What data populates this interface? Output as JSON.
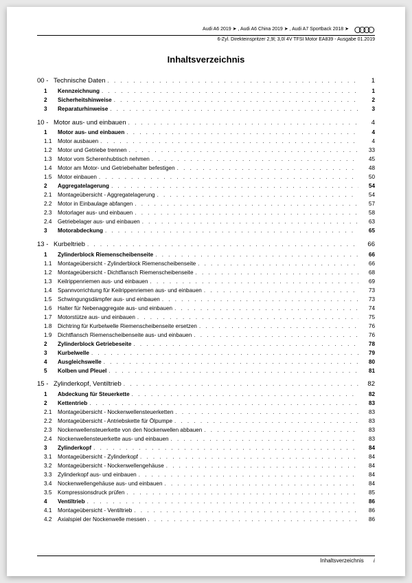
{
  "header": {
    "line1": "Audi A6 2019 ➤ , Audi A6 China 2019 ➤ , Audi A7 Sportback 2018 ➤",
    "line2": "6-Zyl. Direkteinspritzer 2,9l; 3,0l 4V TFSI Motor EA839 - Ausgabe 01.2019"
  },
  "title": "Inhaltsverzeichnis",
  "footer": {
    "label": "Inhaltsverzeichnis",
    "page": "i"
  },
  "sections": [
    {
      "chapter_num": "00 -",
      "chapter_label": "Technische Daten",
      "chapter_page": "1",
      "items": [
        {
          "lvl": 1,
          "num": "1",
          "label": "Kennzeichnung",
          "page": "1",
          "bold": true
        },
        {
          "lvl": 1,
          "num": "2",
          "label": "Sicherheitshinweise",
          "page": "2",
          "bold": true
        },
        {
          "lvl": 1,
          "num": "3",
          "label": "Reparaturhinweise",
          "page": "3",
          "bold": true
        }
      ]
    },
    {
      "chapter_num": "10 -",
      "chapter_label": "Motor aus- und einbauen",
      "chapter_page": "4",
      "items": [
        {
          "lvl": 1,
          "num": "1",
          "label": "Motor aus- und einbauen",
          "page": "4",
          "bold": true
        },
        {
          "lvl": 2,
          "num": "1.1",
          "label": "Motor ausbauen",
          "page": "4"
        },
        {
          "lvl": 2,
          "num": "1.2",
          "label": "Motor und Getriebe trennen",
          "page": "33"
        },
        {
          "lvl": 2,
          "num": "1.3",
          "label": "Motor vom Scherenhubtisch nehmen",
          "page": "45"
        },
        {
          "lvl": 2,
          "num": "1.4",
          "label": "Motor am Motor- und Getriebehalter befestigen",
          "page": "48"
        },
        {
          "lvl": 2,
          "num": "1.5",
          "label": "Motor einbauen",
          "page": "50"
        },
        {
          "lvl": 1,
          "num": "2",
          "label": "Aggregatelagerung",
          "page": "54",
          "bold": true
        },
        {
          "lvl": 2,
          "num": "2.1",
          "label": "Montageübersicht - Aggregatelagerung",
          "page": "54"
        },
        {
          "lvl": 2,
          "num": "2.2",
          "label": "Motor in Einbaulage abfangen",
          "page": "57"
        },
        {
          "lvl": 2,
          "num": "2.3",
          "label": "Motorlager aus- und einbauen",
          "page": "58"
        },
        {
          "lvl": 2,
          "num": "2.4",
          "label": "Getriebelager aus- und einbauen",
          "page": "63"
        },
        {
          "lvl": 1,
          "num": "3",
          "label": "Motorabdeckung",
          "page": "65",
          "bold": true
        }
      ]
    },
    {
      "chapter_num": "13 -",
      "chapter_label": "Kurbeltrieb",
      "chapter_page": "66",
      "items": [
        {
          "lvl": 1,
          "num": "1",
          "label": "Zylinderblock Riemenscheibenseite",
          "page": "66",
          "bold": true
        },
        {
          "lvl": 2,
          "num": "1.1",
          "label": "Montageübersicht - Zylinderblock Riemenscheibenseite",
          "page": "66"
        },
        {
          "lvl": 2,
          "num": "1.2",
          "label": "Montageübersicht - Dichtflansch Riemenscheibenseite",
          "page": "68"
        },
        {
          "lvl": 2,
          "num": "1.3",
          "label": "Keilrippenriemen aus- und einbauen",
          "page": "69"
        },
        {
          "lvl": 2,
          "num": "1.4",
          "label": "Spannvorrichtung für Keilrippenriemen aus- und einbauen",
          "page": "73"
        },
        {
          "lvl": 2,
          "num": "1.5",
          "label": "Schwingungsdämpfer aus- und einbauen",
          "page": "73"
        },
        {
          "lvl": 2,
          "num": "1.6",
          "label": "Halter für Nebenaggregate aus- und einbauen",
          "page": "74"
        },
        {
          "lvl": 2,
          "num": "1.7",
          "label": "Motorstütze aus- und einbauen",
          "page": "75"
        },
        {
          "lvl": 2,
          "num": "1.8",
          "label": "Dichtring für Kurbelwelle Riemenscheibenseite ersetzen",
          "page": "76"
        },
        {
          "lvl": 2,
          "num": "1.9",
          "label": "Dichtflansch Riemenscheibenseite aus- und einbauen",
          "page": "76"
        },
        {
          "lvl": 1,
          "num": "2",
          "label": "Zylinderblock Getriebeseite",
          "page": "78",
          "bold": true
        },
        {
          "lvl": 1,
          "num": "3",
          "label": "Kurbelwelle",
          "page": "79",
          "bold": true
        },
        {
          "lvl": 1,
          "num": "4",
          "label": "Ausgleichswelle",
          "page": "80",
          "bold": true
        },
        {
          "lvl": 1,
          "num": "5",
          "label": "Kolben und Pleuel",
          "page": "81",
          "bold": true
        }
      ]
    },
    {
      "chapter_num": "15 -",
      "chapter_label": "Zylinderkopf, Ventiltrieb",
      "chapter_page": "82",
      "items": [
        {
          "lvl": 1,
          "num": "1",
          "label": "Abdeckung für Steuerkette",
          "page": "82",
          "bold": true
        },
        {
          "lvl": 1,
          "num": "2",
          "label": "Kettentrieb",
          "page": "83",
          "bold": true
        },
        {
          "lvl": 2,
          "num": "2.1",
          "label": "Montageübersicht - Nockenwellensteuerketten",
          "page": "83"
        },
        {
          "lvl": 2,
          "num": "2.2",
          "label": "Montageübersicht - Antriebskette für Ölpumpe",
          "page": "83"
        },
        {
          "lvl": 2,
          "num": "2.3",
          "label": "Nockenwellensteuerkette von den Nockenwellen abbauen",
          "page": "83"
        },
        {
          "lvl": 2,
          "num": "2.4",
          "label": "Nockenwellensteuerkette aus- und einbauen",
          "page": "83"
        },
        {
          "lvl": 1,
          "num": "3",
          "label": "Zylinderkopf",
          "page": "84",
          "bold": true
        },
        {
          "lvl": 2,
          "num": "3.1",
          "label": "Montageübersicht - Zylinderkopf",
          "page": "84"
        },
        {
          "lvl": 2,
          "num": "3.2",
          "label": "Montageübersicht - Nockenwellengehäuse",
          "page": "84"
        },
        {
          "lvl": 2,
          "num": "3.3",
          "label": "Zylinderkopf aus- und einbauen",
          "page": "84"
        },
        {
          "lvl": 2,
          "num": "3.4",
          "label": "Nockenwellengehäuse aus- und einbauen",
          "page": "84"
        },
        {
          "lvl": 2,
          "num": "3.5",
          "label": "Kompressionsdruck prüfen",
          "page": "85"
        },
        {
          "lvl": 1,
          "num": "4",
          "label": "Ventiltrieb",
          "page": "86",
          "bold": true
        },
        {
          "lvl": 2,
          "num": "4.1",
          "label": "Montageübersicht - Ventiltrieb",
          "page": "86"
        },
        {
          "lvl": 2,
          "num": "4.2",
          "label": "Axialspiel der Nockenwelle messen",
          "page": "86"
        }
      ]
    }
  ]
}
